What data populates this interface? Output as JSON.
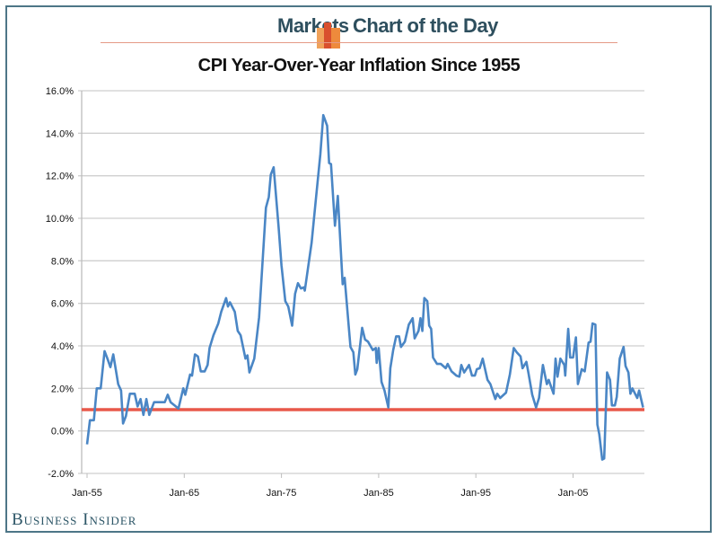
{
  "header": {
    "section": "Markets",
    "series": "Chart of the Day",
    "logo_icon": "bar-chart-logo-icon"
  },
  "brand": "Business Insider",
  "colors": {
    "line": "#4a86c5",
    "reference_line": "#e8584a",
    "frame": "#4d7687",
    "header_text": "#2e4f5e"
  },
  "chart_data": {
    "type": "line",
    "title": "CPI Year-Over-Year Inflation Since 1955",
    "xlabel": "",
    "ylabel": "",
    "ylim": [
      -2,
      16
    ],
    "xlim": [
      1955,
      2012.2
    ],
    "grid": true,
    "y_ticks": [
      "-2.0%",
      "0.0%",
      "2.0%",
      "4.0%",
      "6.0%",
      "8.0%",
      "10.0%",
      "12.0%",
      "14.0%",
      "16.0%"
    ],
    "x_ticks": [
      "Jan-55",
      "Jan-65",
      "Jan-75",
      "Jan-85",
      "Jan-95",
      "Jan-05"
    ],
    "reference_line": {
      "y": 1.0
    },
    "series": [
      {
        "x": [
          1955.0,
          1955.3,
          1955.7,
          1956.0,
          1956.4,
          1956.8,
          1957.1,
          1957.4,
          1957.7,
          1958.2,
          1958.5,
          1958.7,
          1959.0,
          1959.4,
          1959.9,
          1960.2,
          1960.5,
          1960.8,
          1961.1,
          1961.4,
          1961.9,
          1963.0,
          1963.3,
          1963.6,
          1964.4,
          1964.9,
          1965.1,
          1965.6,
          1965.8,
          1966.1,
          1966.4,
          1966.7,
          1967.1,
          1967.4,
          1967.6,
          1968.0,
          1968.5,
          1968.8,
          1969.3,
          1969.5,
          1969.7,
          1970.2,
          1970.5,
          1970.8,
          1971.3,
          1971.5,
          1971.7,
          1972.2,
          1972.7,
          1973.4,
          1973.7,
          1973.9,
          1974.2,
          1974.7,
          1975.0,
          1975.4,
          1975.7,
          1976.1,
          1976.4,
          1976.7,
          1977.0,
          1977.3,
          1977.4,
          1978.1,
          1978.5,
          1979.0,
          1979.3,
          1979.7,
          1979.9,
          1980.1,
          1980.5,
          1980.8,
          1981.3,
          1981.5,
          1982.1,
          1982.4,
          1982.6,
          1982.8,
          1983.3,
          1983.6,
          1983.9,
          1984.4,
          1984.7,
          1984.8,
          1985.0,
          1985.3,
          1985.6,
          1986.0,
          1986.2,
          1986.5,
          1986.8,
          1987.1,
          1987.3,
          1987.7,
          1988.1,
          1988.5,
          1988.7,
          1989.1,
          1989.3,
          1989.5,
          1989.7,
          1990.0,
          1990.2,
          1990.4,
          1990.6,
          1991.0,
          1991.4,
          1991.9,
          1992.1,
          1992.5,
          1993.0,
          1993.3,
          1993.5,
          1993.8,
          1994.3,
          1994.6,
          1994.9,
          1995.1,
          1995.4,
          1995.7,
          1996.2,
          1996.5,
          1997.0,
          1997.2,
          1997.5,
          1998.1,
          1998.5,
          1998.9,
          1999.2,
          1999.6,
          1999.8,
          2000.2,
          2000.4,
          2000.8,
          2001.2,
          2001.5,
          2001.9,
          2002.3,
          2002.5,
          2003.0,
          2003.2,
          2003.4,
          2003.7,
          2004.1,
          2004.2,
          2004.5,
          2004.7,
          2005.0,
          2005.3,
          2005.5,
          2005.9,
          2006.2,
          2006.6,
          2006.8,
          2007.0,
          2007.3,
          2007.5,
          2007.7,
          2008.0,
          2008.2,
          2008.5,
          2008.8,
          2009.0,
          2009.3,
          2009.5,
          2009.8,
          2010.2,
          2010.4,
          2010.7,
          2010.9,
          2011.1,
          2011.6,
          2011.8,
          2012.2
        ],
        "values": [
          -0.63,
          0.5,
          0.5,
          2.0,
          2.0,
          3.75,
          3.4,
          3.0,
          3.6,
          2.2,
          1.9,
          0.35,
          0.7,
          1.75,
          1.75,
          1.15,
          1.5,
          0.75,
          1.5,
          0.75,
          1.35,
          1.35,
          1.7,
          1.35,
          1.05,
          2.0,
          1.7,
          2.65,
          2.6,
          3.6,
          3.5,
          2.8,
          2.8,
          3.1,
          3.9,
          4.5,
          5.05,
          5.6,
          6.25,
          5.85,
          6.05,
          5.6,
          4.7,
          4.5,
          3.4,
          3.55,
          2.75,
          3.4,
          5.35,
          10.5,
          11.0,
          12.05,
          12.4,
          9.6,
          7.8,
          6.1,
          5.85,
          4.95,
          6.45,
          6.95,
          6.7,
          6.75,
          6.6,
          8.85,
          10.7,
          13.0,
          14.85,
          14.35,
          12.6,
          12.55,
          9.65,
          11.05,
          6.9,
          7.2,
          3.95,
          3.7,
          2.65,
          2.9,
          4.85,
          4.3,
          4.2,
          3.8,
          3.9,
          3.2,
          3.9,
          2.3,
          1.9,
          1.1,
          2.95,
          3.8,
          4.45,
          4.45,
          3.95,
          4.2,
          5.0,
          5.3,
          4.35,
          4.7,
          5.3,
          4.7,
          6.25,
          6.1,
          4.95,
          4.8,
          3.45,
          3.15,
          3.15,
          2.95,
          3.15,
          2.8,
          2.6,
          2.55,
          3.1,
          2.75,
          3.1,
          2.6,
          2.6,
          2.9,
          2.95,
          3.4,
          2.4,
          2.2,
          1.5,
          1.75,
          1.55,
          1.8,
          2.65,
          3.9,
          3.7,
          3.5,
          2.95,
          3.25,
          2.75,
          1.7,
          1.1,
          1.55,
          3.1,
          2.2,
          2.4,
          1.75,
          3.4,
          2.55,
          3.4,
          3.1,
          2.6,
          4.8,
          3.45,
          3.45,
          4.4,
          2.2,
          2.9,
          2.8,
          4.15,
          4.2,
          5.05,
          5.0,
          0.3,
          -0.15,
          -1.35,
          -1.3,
          2.75,
          2.4,
          1.2,
          1.2,
          1.6,
          3.4,
          3.95,
          3.05,
          2.75,
          1.75,
          2.0,
          1.55,
          1.9,
          1.1
        ]
      }
    ]
  }
}
